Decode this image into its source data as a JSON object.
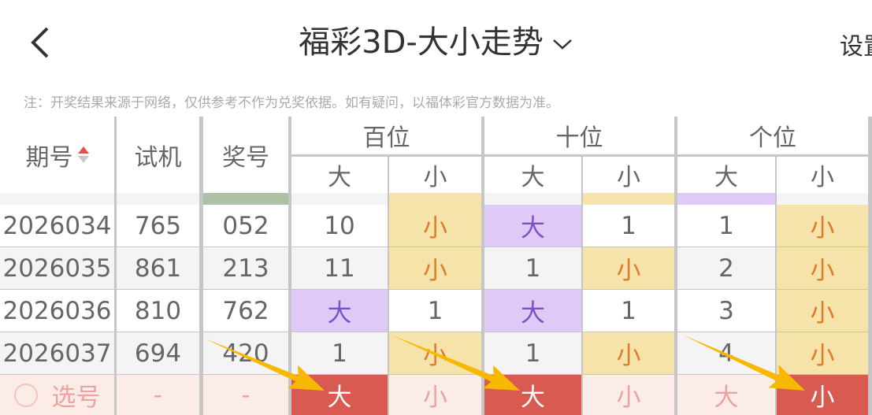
{
  "header": {
    "title": "福彩3D-大小走势",
    "settings": "设置"
  },
  "note": "注：开奖结果来源于网络，仅供参考不作为兑奖依据。如有疑问，以福体彩官方数据为准。",
  "columns": {
    "period": "期号",
    "test": "试机",
    "prize": "奖号",
    "groups": [
      "百位",
      "十位",
      "个位"
    ],
    "big": "大",
    "small": "小"
  },
  "colors": {
    "big_bg": "#dfc9f6",
    "big_text": "#7b52c4",
    "small_bg": "#f6e3a9",
    "small_text": "#e07b2c",
    "select_bg": "#fbece7",
    "select_text": "#eba3a0",
    "selected_bg": "#d95a50",
    "arrow": "#f8b800",
    "prize_partial": "#adc2a5"
  },
  "rows": [
    {
      "period": "2026034",
      "test": "765",
      "prize": "052",
      "cells": [
        "10",
        "小",
        "大",
        "1",
        "1",
        "小"
      ]
    },
    {
      "period": "2026035",
      "test": "861",
      "prize": "213",
      "cells": [
        "11",
        "小",
        "1",
        "小",
        "2",
        "小"
      ]
    },
    {
      "period": "2026036",
      "test": "810",
      "prize": "762",
      "cells": [
        "大",
        "1",
        "大",
        "1",
        "3",
        "小"
      ]
    },
    {
      "period": "2026037",
      "test": "694",
      "prize": "420",
      "cells": [
        "1",
        "小",
        "1",
        "小",
        "4",
        "小"
      ]
    }
  ],
  "select_row": {
    "label": "选号",
    "test": "-",
    "prize": "-",
    "cells": [
      {
        "text": "大",
        "selected": true
      },
      {
        "text": "小",
        "selected": false
      },
      {
        "text": "大",
        "selected": true
      },
      {
        "text": "小",
        "selected": false
      },
      {
        "text": "大",
        "selected": false
      },
      {
        "text": "小",
        "selected": true
      }
    ]
  }
}
